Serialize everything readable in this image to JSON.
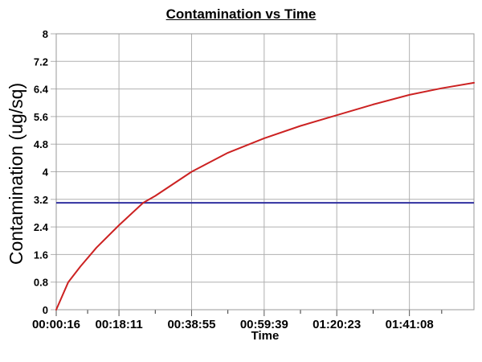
{
  "colors": {
    "series_red": "#cc2222",
    "ref_blue": "#3030a0",
    "grid": "#b0b0b0",
    "frame": "#999999",
    "tick": "#555555",
    "text": "#000000",
    "background": "#ffffff"
  },
  "chart_data": {
    "type": "line",
    "title": "Contamination vs Time",
    "xlabel": "Time",
    "ylabel": "Contamination (ug/sq)",
    "xlim_seconds": [
      16,
      7174
    ],
    "ylim": [
      0,
      8
    ],
    "grid": true,
    "legend": "none",
    "y_ticks": [
      {
        "v": 0,
        "label": "0"
      },
      {
        "v": 0.8,
        "label": "0.8"
      },
      {
        "v": 1.6,
        "label": "1.6"
      },
      {
        "v": 2.4,
        "label": "2.4"
      },
      {
        "v": 3.2,
        "label": "3.2"
      },
      {
        "v": 4,
        "label": "4"
      },
      {
        "v": 4.8,
        "label": "4.8"
      },
      {
        "v": 5.6,
        "label": "5.6"
      },
      {
        "v": 6.4,
        "label": "6.4"
      },
      {
        "v": 7.2,
        "label": "7.2"
      },
      {
        "v": 8,
        "label": "8"
      }
    ],
    "x_major_ticks": [
      {
        "t": 16,
        "label": "00:00:16"
      },
      {
        "t": 1091,
        "label": "00:18:11"
      },
      {
        "t": 2335,
        "label": "00:38:55"
      },
      {
        "t": 3579,
        "label": "00:59:39"
      },
      {
        "t": 4823,
        "label": "01:20:23"
      },
      {
        "t": 6068,
        "label": "01:41:08"
      }
    ],
    "x_minor_ticks": [
      554,
      1713,
      2957,
      4201,
      5446,
      6621
    ],
    "series": [
      {
        "name": "contamination",
        "color": "#cc2222",
        "points": [
          [
            16,
            0
          ],
          [
            223,
            0.8
          ],
          [
            429,
            1.25
          ],
          [
            705,
            1.8
          ],
          [
            1091,
            2.45
          ],
          [
            1506,
            3.1
          ],
          [
            1713,
            3.3
          ],
          [
            2335,
            4.0
          ],
          [
            2957,
            4.55
          ],
          [
            3579,
            4.97
          ],
          [
            4201,
            5.33
          ],
          [
            4823,
            5.64
          ],
          [
            5445,
            5.95
          ],
          [
            6068,
            6.23
          ],
          [
            6621,
            6.42
          ],
          [
            7174,
            6.58
          ]
        ]
      }
    ],
    "reference_line": {
      "value": 3.1,
      "color": "#3030a0"
    }
  }
}
